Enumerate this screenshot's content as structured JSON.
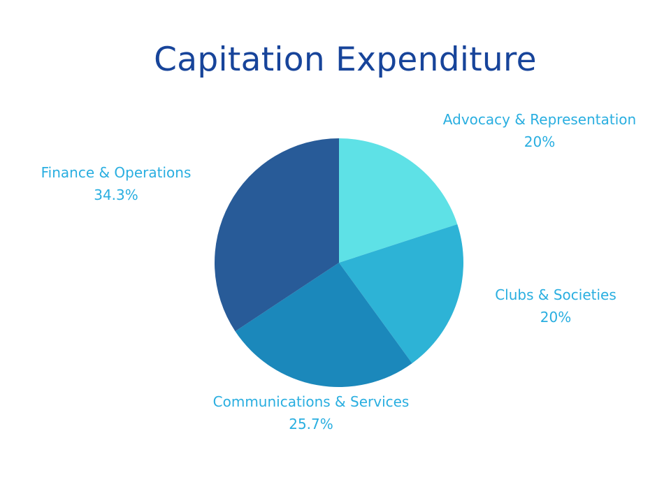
{
  "chart_data": {
    "type": "pie",
    "title": "Capitation Expenditure",
    "categories": [
      "Advocacy & Representation",
      "Clubs & Societies",
      "Communications & Services",
      "Finance & Operations"
    ],
    "values": [
      20,
      20,
      25.7,
      34.3
    ],
    "value_labels": [
      "20%",
      "20%",
      "25.7%",
      "34.3%"
    ],
    "colors": [
      "#5ee1e6",
      "#2db3d6",
      "#1b88bb",
      "#285b98"
    ],
    "label_color": "#29aee0",
    "title_color": "#17449a",
    "start": "top, clockwise",
    "legend": "none"
  }
}
